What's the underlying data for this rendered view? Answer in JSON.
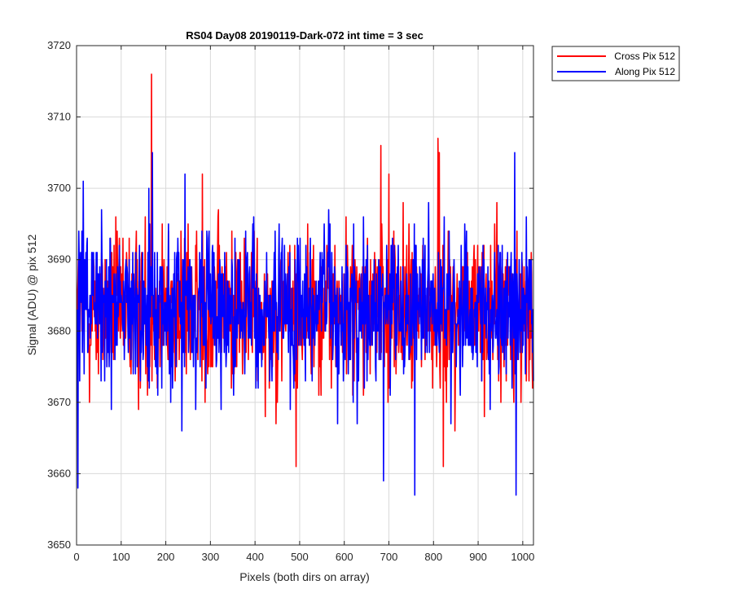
{
  "chart_data": {
    "type": "line",
    "title": "RS04 Day08 20190119-Dark-072 int time = 3 sec",
    "xlabel": "Pixels (both dirs on array)",
    "ylabel": "Signal (ADU) @ pix 512",
    "xlim": [
      0,
      1024
    ],
    "ylim": [
      3650,
      3720
    ],
    "xticks": [
      0,
      100,
      200,
      300,
      400,
      500,
      600,
      700,
      800,
      900,
      1000
    ],
    "yticks": [
      3650,
      3660,
      3670,
      3680,
      3690,
      3700,
      3710,
      3720
    ],
    "grid": true,
    "legend_position": "outside-top-right",
    "series": [
      {
        "name": "Cross Pix 512",
        "color": "#ff0000",
        "x_start": 1,
        "x_step": 1,
        "baseline": 3683,
        "spread": 5.5,
        "min": 3661,
        "max": 3716,
        "peaks": [
          [
            168,
            3716
          ],
          [
            810,
            3707
          ],
          [
            813,
            3705
          ],
          [
            682,
            3706
          ],
          [
            700,
            3702
          ],
          [
            282,
            3702
          ],
          [
            822,
            3661
          ],
          [
            492,
            3661
          ]
        ]
      },
      {
        "name": "Along Pix 512",
        "color": "#0000ff",
        "x_start": 1,
        "x_step": 1,
        "baseline": 3683,
        "spread": 5.5,
        "min": 3657,
        "max": 3705,
        "peaks": [
          [
            170,
            3705
          ],
          [
            982,
            3705
          ],
          [
            15,
            3701
          ],
          [
            243,
            3702
          ],
          [
            3,
            3658
          ],
          [
            758,
            3657
          ],
          [
            985,
            3657
          ],
          [
            688,
            3659
          ]
        ]
      }
    ]
  }
}
